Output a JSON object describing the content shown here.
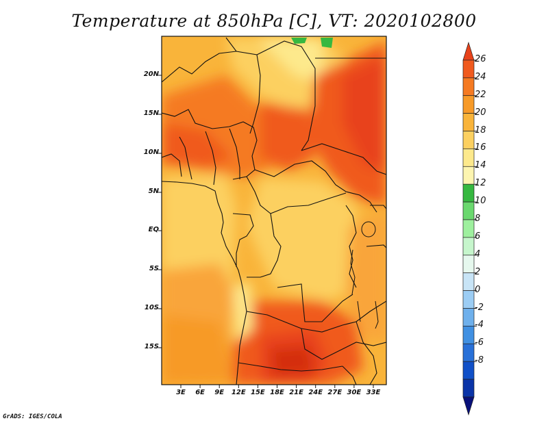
{
  "title": "Temperature at 850hPa [C], VT: 2020102800",
  "credit": "GrADS: IGES/COLA",
  "lat_labels": [
    "20N",
    "15N",
    "10N",
    "5N",
    "EQ",
    "5S",
    "10S",
    "15S"
  ],
  "lon_labels": [
    "3E",
    "6E",
    "9E",
    "12E",
    "15E",
    "18E",
    "21E",
    "24E",
    "27E",
    "30E",
    "33E"
  ],
  "colorbar": {
    "labels": [
      "26",
      "24",
      "22",
      "20",
      "18",
      "16",
      "14",
      "12",
      "10",
      "8",
      "6",
      "4",
      "2",
      "0",
      "-2",
      "-4",
      "-6",
      "-8"
    ],
    "colors": [
      "#e8421a",
      "#f05a1e",
      "#f57a22",
      "#f79a28",
      "#f9b43a",
      "#fcd060",
      "#fde98c",
      "#fdf5b0",
      "#36b840",
      "#6ad86e",
      "#9ef09e",
      "#c6f6cc",
      "#e6f8ee",
      "#c8e4f6",
      "#9ccdf4",
      "#6eb0ec",
      "#4090e2",
      "#2870d8",
      "#1050c8",
      "#0a34a8",
      "#08107a"
    ]
  }
}
